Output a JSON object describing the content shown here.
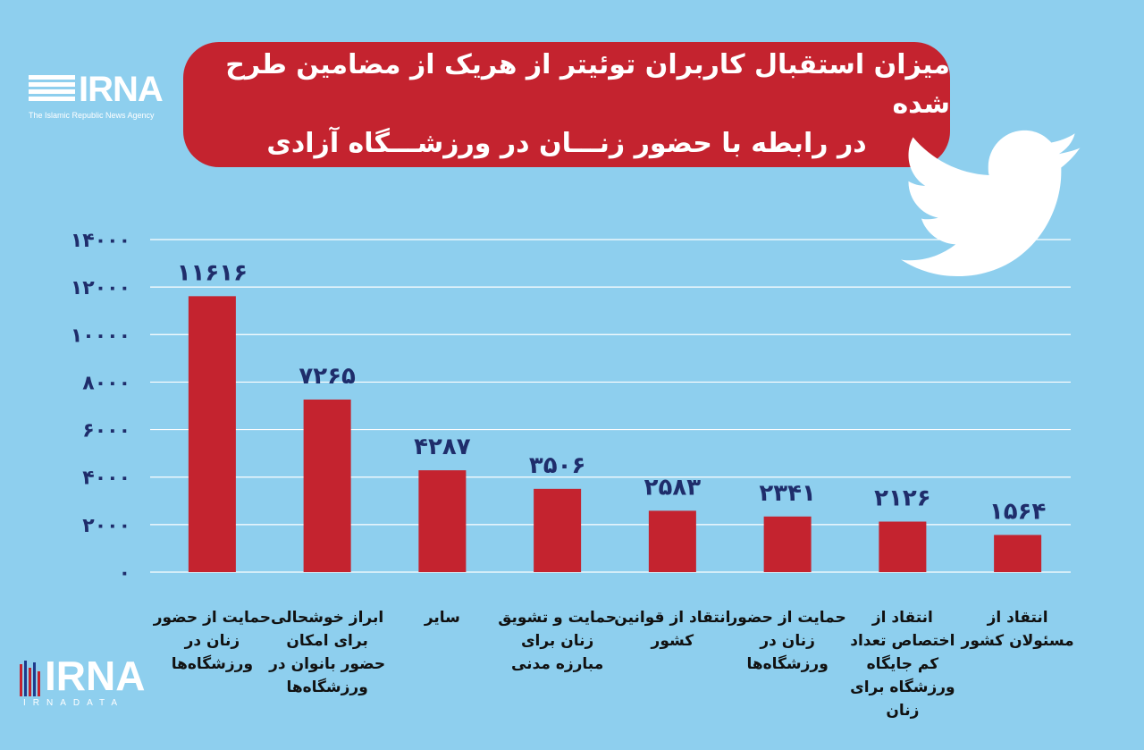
{
  "logo_top": {
    "name": "IRNA",
    "subtitle": "The Islamic Republic News Agency"
  },
  "logo_bottom": {
    "name": "IRNA",
    "subtitle": "IRNADATA"
  },
  "chart_data": {
    "type": "bar",
    "title_line1": "میزان استقبال کاربران توئیتر از هریک از مضامین طرح شده",
    "title_line2": "در رابطه با حضور زنـــان در ورزشـــگاه آزادی",
    "ylim": [
      0,
      14000
    ],
    "yticks": [
      "۱۴۰۰۰",
      "۱۲۰۰۰",
      "۱۰۰۰۰",
      "۸۰۰۰",
      "۶۰۰۰",
      "۴۰۰۰",
      "۲۰۰۰",
      "۰"
    ],
    "ytick_values": [
      14000,
      12000,
      10000,
      8000,
      6000,
      4000,
      2000,
      0
    ],
    "categories": [
      "حمایت از حضور زنان در ورزشگاه‌ها",
      "ابراز خوشحالی برای امکان حضور بانوان در ورزشگاه‌ها",
      "سایر",
      "حمایت و تشویق زنان برای مبارزه مدنی",
      "انتقاد از قوانین کشور",
      "حمایت از حضور زنان در ورزشگاه‌ها",
      "انتقاد از اختصاص تعداد کم جایگاه ورزشگاه برای زنان",
      "انتقاد از مسئولان کشور"
    ],
    "values": [
      11616,
      7265,
      4287,
      3506,
      2583,
      2341,
      2126,
      1564
    ],
    "value_labels": [
      "۱۱۶۱۶",
      "۷۲۶۵",
      "۴۲۸۷",
      "۳۵۰۶",
      "۲۵۸۳",
      "۲۳۴۱",
      "۲۱۲۶",
      "۱۵۶۴"
    ],
    "grid": true,
    "bar_color": "#c4232f",
    "background": "#8ecfee"
  }
}
